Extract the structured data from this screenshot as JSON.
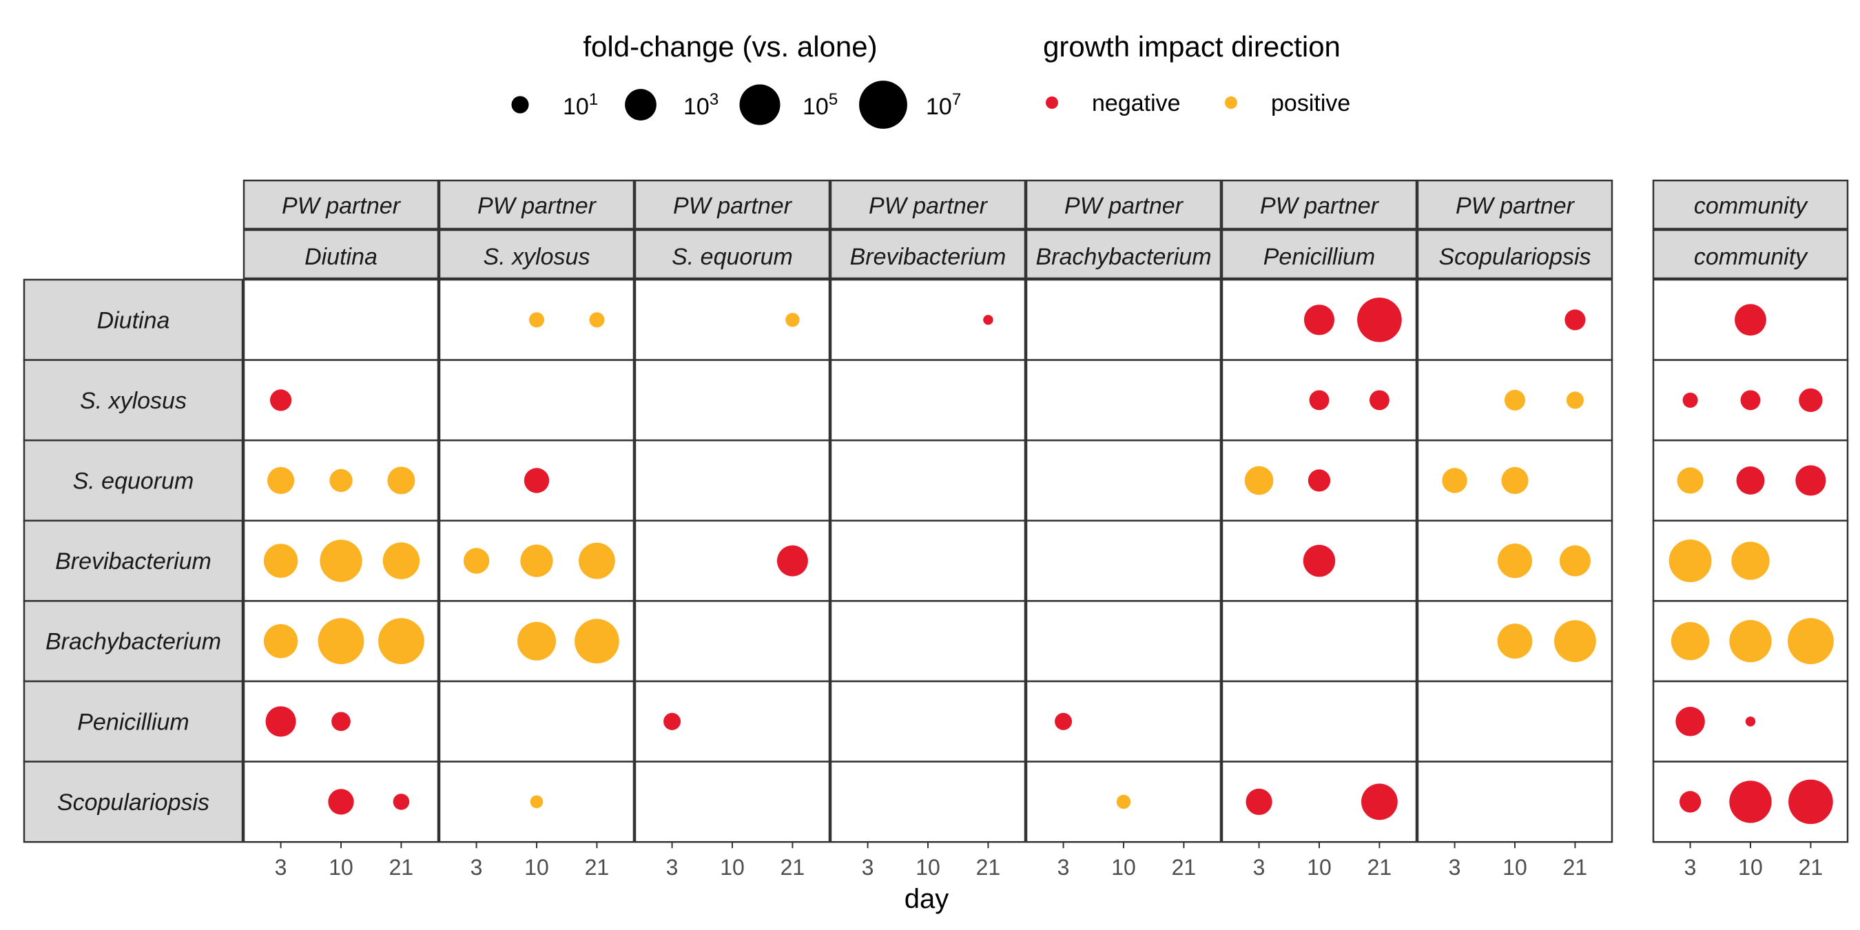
{
  "chart_data": {
    "type": "scatter",
    "xlabel": "day",
    "x_ticks": [
      3,
      10,
      21
    ],
    "colors": {
      "negative": "#e41a2c",
      "positive": "#fbb324"
    },
    "legend": {
      "size_title": "fold-change (vs. alone)",
      "size_entries": [
        {
          "base": "10",
          "exp": "1",
          "value": 10
        },
        {
          "base": "10",
          "exp": "3",
          "value": 1000
        },
        {
          "base": "10",
          "exp": "5",
          "value": 100000
        },
        {
          "base": "10",
          "exp": "7",
          "value": 10000000
        }
      ],
      "color_title": "growth impact direction",
      "color_entries": [
        {
          "key": "negative",
          "label": "negative"
        },
        {
          "key": "positive",
          "label": "positive"
        }
      ]
    },
    "rows": [
      "Diutina",
      "S. xylosus",
      "S. equorum",
      "Brevibacterium",
      "Brachybacterium",
      "Penicillium",
      "Scopulariopsis"
    ],
    "panels": [
      {
        "strip_top": "PW partner",
        "strip_bottom": "Diutina"
      },
      {
        "strip_top": "PW partner",
        "strip_bottom": "S. xylosus"
      },
      {
        "strip_top": "PW partner",
        "strip_bottom": "S. equorum"
      },
      {
        "strip_top": "PW partner",
        "strip_bottom": "Brevibacterium"
      },
      {
        "strip_top": "PW partner",
        "strip_bottom": "Brachybacterium"
      },
      {
        "strip_top": "PW partner",
        "strip_bottom": "Penicillium"
      },
      {
        "strip_top": "PW partner",
        "strip_bottom": "Scopulariopsis"
      },
      {
        "strip_top": "community",
        "strip_bottom": "community"
      }
    ],
    "points": [
      {
        "row": 0,
        "panel": 1,
        "day": 10,
        "log_fc": 0.7,
        "dir": "positive"
      },
      {
        "row": 0,
        "panel": 1,
        "day": 21,
        "log_fc": 0.7,
        "dir": "positive"
      },
      {
        "row": 0,
        "panel": 2,
        "day": 21,
        "log_fc": 0.6,
        "dir": "positive"
      },
      {
        "row": 0,
        "panel": 3,
        "day": 21,
        "log_fc": 0.3,
        "dir": "negative"
      },
      {
        "row": 0,
        "panel": 5,
        "day": 10,
        "log_fc": 2.8,
        "dir": "negative"
      },
      {
        "row": 0,
        "panel": 5,
        "day": 21,
        "log_fc": 6.0,
        "dir": "negative"
      },
      {
        "row": 0,
        "panel": 6,
        "day": 21,
        "log_fc": 1.3,
        "dir": "negative"
      },
      {
        "row": 0,
        "panel": 7,
        "day": 10,
        "log_fc": 3.0,
        "dir": "negative"
      },
      {
        "row": 1,
        "panel": 0,
        "day": 3,
        "log_fc": 1.4,
        "dir": "negative"
      },
      {
        "row": 1,
        "panel": 5,
        "day": 10,
        "log_fc": 1.2,
        "dir": "negative"
      },
      {
        "row": 1,
        "panel": 5,
        "day": 21,
        "log_fc": 1.2,
        "dir": "negative"
      },
      {
        "row": 1,
        "panel": 6,
        "day": 10,
        "log_fc": 1.3,
        "dir": "positive"
      },
      {
        "row": 1,
        "panel": 6,
        "day": 21,
        "log_fc": 0.9,
        "dir": "positive"
      },
      {
        "row": 1,
        "panel": 7,
        "day": 3,
        "log_fc": 0.7,
        "dir": "negative"
      },
      {
        "row": 1,
        "panel": 7,
        "day": 10,
        "log_fc": 1.2,
        "dir": "negative"
      },
      {
        "row": 1,
        "panel": 7,
        "day": 21,
        "log_fc": 1.7,
        "dir": "negative"
      },
      {
        "row": 2,
        "panel": 0,
        "day": 3,
        "log_fc": 2.2,
        "dir": "positive"
      },
      {
        "row": 2,
        "panel": 0,
        "day": 10,
        "log_fc": 1.6,
        "dir": "positive"
      },
      {
        "row": 2,
        "panel": 0,
        "day": 21,
        "log_fc": 2.3,
        "dir": "positive"
      },
      {
        "row": 2,
        "panel": 1,
        "day": 10,
        "log_fc": 1.9,
        "dir": "negative"
      },
      {
        "row": 2,
        "panel": 5,
        "day": 3,
        "log_fc": 2.5,
        "dir": "positive"
      },
      {
        "row": 2,
        "panel": 5,
        "day": 10,
        "log_fc": 1.5,
        "dir": "negative"
      },
      {
        "row": 2,
        "panel": 6,
        "day": 3,
        "log_fc": 1.9,
        "dir": "positive"
      },
      {
        "row": 2,
        "panel": 6,
        "day": 10,
        "log_fc": 2.2,
        "dir": "positive"
      },
      {
        "row": 2,
        "panel": 7,
        "day": 3,
        "log_fc": 2.1,
        "dir": "positive"
      },
      {
        "row": 2,
        "panel": 7,
        "day": 10,
        "log_fc": 2.4,
        "dir": "negative"
      },
      {
        "row": 2,
        "panel": 7,
        "day": 21,
        "log_fc": 2.8,
        "dir": "negative"
      },
      {
        "row": 3,
        "panel": 0,
        "day": 3,
        "log_fc": 3.5,
        "dir": "positive"
      },
      {
        "row": 3,
        "panel": 0,
        "day": 10,
        "log_fc": 5.4,
        "dir": "positive"
      },
      {
        "row": 3,
        "panel": 0,
        "day": 21,
        "log_fc": 4.1,
        "dir": "positive"
      },
      {
        "row": 3,
        "panel": 1,
        "day": 3,
        "log_fc": 2.0,
        "dir": "positive"
      },
      {
        "row": 3,
        "panel": 1,
        "day": 10,
        "log_fc": 3.2,
        "dir": "positive"
      },
      {
        "row": 3,
        "panel": 1,
        "day": 21,
        "log_fc": 4.0,
        "dir": "positive"
      },
      {
        "row": 3,
        "panel": 2,
        "day": 21,
        "log_fc": 2.9,
        "dir": "negative"
      },
      {
        "row": 3,
        "panel": 5,
        "day": 10,
        "log_fc": 3.1,
        "dir": "negative"
      },
      {
        "row": 3,
        "panel": 6,
        "day": 10,
        "log_fc": 3.6,
        "dir": "positive"
      },
      {
        "row": 3,
        "panel": 6,
        "day": 21,
        "log_fc": 2.9,
        "dir": "positive"
      },
      {
        "row": 3,
        "panel": 7,
        "day": 3,
        "log_fc": 5.5,
        "dir": "positive"
      },
      {
        "row": 3,
        "panel": 7,
        "day": 10,
        "log_fc": 4.4,
        "dir": "positive"
      },
      {
        "row": 4,
        "panel": 0,
        "day": 3,
        "log_fc": 3.5,
        "dir": "positive"
      },
      {
        "row": 4,
        "panel": 0,
        "day": 10,
        "log_fc": 6.4,
        "dir": "positive"
      },
      {
        "row": 4,
        "panel": 0,
        "day": 21,
        "log_fc": 6.4,
        "dir": "positive"
      },
      {
        "row": 4,
        "panel": 1,
        "day": 10,
        "log_fc": 4.5,
        "dir": "positive"
      },
      {
        "row": 4,
        "panel": 1,
        "day": 21,
        "log_fc": 6.0,
        "dir": "positive"
      },
      {
        "row": 4,
        "panel": 6,
        "day": 10,
        "log_fc": 3.7,
        "dir": "positive"
      },
      {
        "row": 4,
        "panel": 6,
        "day": 21,
        "log_fc": 5.3,
        "dir": "positive"
      },
      {
        "row": 4,
        "panel": 7,
        "day": 3,
        "log_fc": 4.4,
        "dir": "positive"
      },
      {
        "row": 4,
        "panel": 7,
        "day": 10,
        "log_fc": 5.4,
        "dir": "positive"
      },
      {
        "row": 4,
        "panel": 7,
        "day": 21,
        "log_fc": 6.4,
        "dir": "positive"
      },
      {
        "row": 5,
        "panel": 0,
        "day": 3,
        "log_fc": 2.8,
        "dir": "negative"
      },
      {
        "row": 5,
        "panel": 0,
        "day": 10,
        "log_fc": 1.1,
        "dir": "negative"
      },
      {
        "row": 5,
        "panel": 2,
        "day": 3,
        "log_fc": 0.9,
        "dir": "negative"
      },
      {
        "row": 5,
        "panel": 4,
        "day": 3,
        "log_fc": 0.9,
        "dir": "negative"
      },
      {
        "row": 5,
        "panel": 7,
        "day": 3,
        "log_fc": 2.6,
        "dir": "negative"
      },
      {
        "row": 5,
        "panel": 7,
        "day": 10,
        "log_fc": 0.3,
        "dir": "negative"
      },
      {
        "row": 6,
        "panel": 0,
        "day": 10,
        "log_fc": 2.0,
        "dir": "negative"
      },
      {
        "row": 6,
        "panel": 0,
        "day": 21,
        "log_fc": 0.8,
        "dir": "negative"
      },
      {
        "row": 6,
        "panel": 1,
        "day": 10,
        "log_fc": 0.5,
        "dir": "positive"
      },
      {
        "row": 6,
        "panel": 4,
        "day": 10,
        "log_fc": 0.6,
        "dir": "positive"
      },
      {
        "row": 6,
        "panel": 5,
        "day": 3,
        "log_fc": 2.1,
        "dir": "negative"
      },
      {
        "row": 6,
        "panel": 5,
        "day": 21,
        "log_fc": 4.0,
        "dir": "negative"
      },
      {
        "row": 6,
        "panel": 7,
        "day": 3,
        "log_fc": 1.4,
        "dir": "negative"
      },
      {
        "row": 6,
        "panel": 7,
        "day": 10,
        "log_fc": 5.4,
        "dir": "negative"
      },
      {
        "row": 6,
        "panel": 7,
        "day": 21,
        "log_fc": 6.0,
        "dir": "negative"
      }
    ]
  }
}
